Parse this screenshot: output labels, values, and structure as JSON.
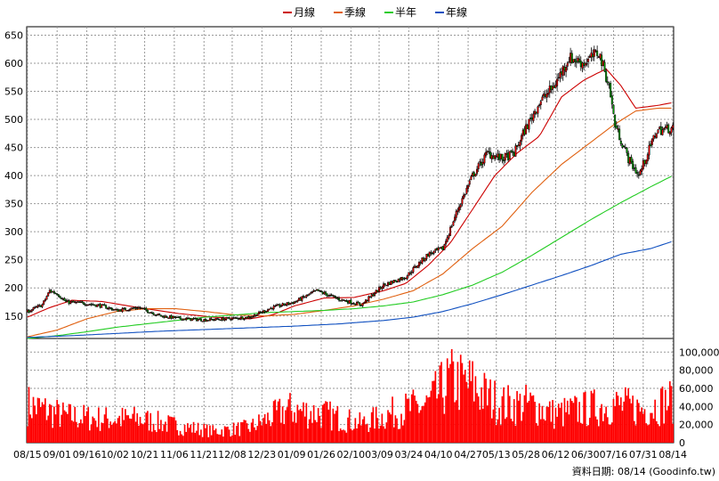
{
  "chart_data": {
    "type": "candlestick",
    "legend": [
      {
        "name": "月線",
        "color": "#cc0000"
      },
      {
        "name": "季線",
        "color": "#e06010"
      },
      {
        "name": "半年",
        "color": "#22cc22"
      },
      {
        "name": "年線",
        "color": "#1050c0"
      }
    ],
    "price_axis": {
      "ticks": [
        150,
        200,
        250,
        300,
        350,
        400,
        450,
        500,
        550,
        600,
        650
      ],
      "ylim": [
        110,
        665
      ]
    },
    "volume_axis": {
      "ticks": [
        "0",
        "20,000",
        "40,000",
        "60,000",
        "80,000",
        "100,000"
      ],
      "values": [
        0,
        20000,
        40000,
        60000,
        80000,
        100000
      ],
      "ylim": [
        0,
        115000
      ]
    },
    "x_ticks": [
      "08/15",
      "09/01",
      "09/16",
      "10/02",
      "10/21",
      "11/06",
      "11/21",
      "12/08",
      "12/23",
      "01/09",
      "01/26",
      "02/10",
      "03/09",
      "03/24",
      "04/10",
      "04/27",
      "05/13",
      "05/28",
      "06/12",
      "06/30",
      "07/16",
      "07/31",
      "08/14"
    ],
    "price_anchors": [
      [
        0,
        158
      ],
      [
        10,
        170
      ],
      [
        15,
        195
      ],
      [
        20,
        190
      ],
      [
        26,
        175
      ],
      [
        40,
        172
      ],
      [
        50,
        168
      ],
      [
        60,
        160
      ],
      [
        75,
        165
      ],
      [
        90,
        150
      ],
      [
        105,
        145
      ],
      [
        120,
        143
      ],
      [
        135,
        145
      ],
      [
        150,
        148
      ],
      [
        165,
        165
      ],
      [
        180,
        175
      ],
      [
        195,
        195
      ],
      [
        210,
        180
      ],
      [
        225,
        170
      ],
      [
        240,
        205
      ],
      [
        255,
        220
      ],
      [
        270,
        260
      ],
      [
        280,
        270
      ],
      [
        290,
        340
      ],
      [
        300,
        400
      ],
      [
        310,
        440
      ],
      [
        320,
        430
      ],
      [
        328,
        440
      ],
      [
        335,
        480
      ],
      [
        345,
        530
      ],
      [
        355,
        560
      ],
      [
        365,
        610
      ],
      [
        375,
        600
      ],
      [
        385,
        620
      ],
      [
        392,
        560
      ],
      [
        396,
        490
      ],
      [
        405,
        430
      ],
      [
        412,
        400
      ],
      [
        418,
        440
      ],
      [
        424,
        480
      ],
      [
        435,
        485
      ]
    ],
    "volume_anchors": [
      [
        0,
        40000
      ],
      [
        25,
        28000
      ],
      [
        50,
        25000
      ],
      [
        75,
        25000
      ],
      [
        100,
        18000
      ],
      [
        125,
        12000
      ],
      [
        150,
        16000
      ],
      [
        175,
        35000
      ],
      [
        200,
        30000
      ],
      [
        225,
        20000
      ],
      [
        250,
        33000
      ],
      [
        270,
        40000
      ],
      [
        285,
        65000
      ],
      [
        300,
        60000
      ],
      [
        310,
        48000
      ],
      [
        320,
        40000
      ],
      [
        340,
        40000
      ],
      [
        355,
        30000
      ],
      [
        375,
        35000
      ],
      [
        395,
        40000
      ],
      [
        415,
        35000
      ],
      [
        435,
        45000
      ]
    ],
    "moving_averages": {
      "月線": [
        [
          0,
          148
        ],
        [
          15,
          165
        ],
        [
          30,
          178
        ],
        [
          50,
          176
        ],
        [
          75,
          165
        ],
        [
          100,
          155
        ],
        [
          125,
          148
        ],
        [
          150,
          145
        ],
        [
          165,
          152
        ],
        [
          180,
          168
        ],
        [
          200,
          182
        ],
        [
          220,
          183
        ],
        [
          240,
          195
        ],
        [
          255,
          208
        ],
        [
          270,
          240
        ],
        [
          285,
          280
        ],
        [
          300,
          340
        ],
        [
          315,
          400
        ],
        [
          330,
          440
        ],
        [
          345,
          470
        ],
        [
          360,
          540
        ],
        [
          375,
          570
        ],
        [
          390,
          590
        ],
        [
          400,
          560
        ],
        [
          410,
          520
        ],
        [
          425,
          525
        ],
        [
          435,
          530
        ]
      ],
      "季線": [
        [
          0,
          113
        ],
        [
          20,
          125
        ],
        [
          40,
          145
        ],
        [
          60,
          158
        ],
        [
          80,
          163
        ],
        [
          100,
          163
        ],
        [
          120,
          158
        ],
        [
          140,
          152
        ],
        [
          160,
          150
        ],
        [
          180,
          153
        ],
        [
          200,
          160
        ],
        [
          220,
          168
        ],
        [
          240,
          180
        ],
        [
          260,
          195
        ],
        [
          280,
          225
        ],
        [
          300,
          270
        ],
        [
          320,
          310
        ],
        [
          340,
          370
        ],
        [
          360,
          420
        ],
        [
          380,
          460
        ],
        [
          395,
          490
        ],
        [
          410,
          515
        ],
        [
          425,
          520
        ],
        [
          435,
          520
        ]
      ],
      "半年": [
        [
          0,
          110
        ],
        [
          20,
          115
        ],
        [
          40,
          122
        ],
        [
          60,
          130
        ],
        [
          80,
          136
        ],
        [
          100,
          142
        ],
        [
          120,
          148
        ],
        [
          140,
          152
        ],
        [
          160,
          156
        ],
        [
          180,
          158
        ],
        [
          200,
          160
        ],
        [
          220,
          163
        ],
        [
          240,
          168
        ],
        [
          260,
          175
        ],
        [
          280,
          188
        ],
        [
          300,
          205
        ],
        [
          320,
          228
        ],
        [
          340,
          258
        ],
        [
          360,
          290
        ],
        [
          380,
          322
        ],
        [
          400,
          352
        ],
        [
          420,
          380
        ],
        [
          435,
          400
        ]
      ],
      "年線": [
        [
          0,
          112
        ],
        [
          30,
          115
        ],
        [
          60,
          119
        ],
        [
          90,
          123
        ],
        [
          120,
          126
        ],
        [
          150,
          129
        ],
        [
          180,
          132
        ],
        [
          210,
          136
        ],
        [
          240,
          142
        ],
        [
          260,
          148
        ],
        [
          280,
          158
        ],
        [
          300,
          172
        ],
        [
          320,
          188
        ],
        [
          340,
          205
        ],
        [
          360,
          222
        ],
        [
          380,
          240
        ],
        [
          400,
          260
        ],
        [
          420,
          270
        ],
        [
          435,
          283
        ]
      ]
    },
    "n_points": 436
  },
  "footer": "資料日期: 08/14 (Goodinfo.tw)"
}
